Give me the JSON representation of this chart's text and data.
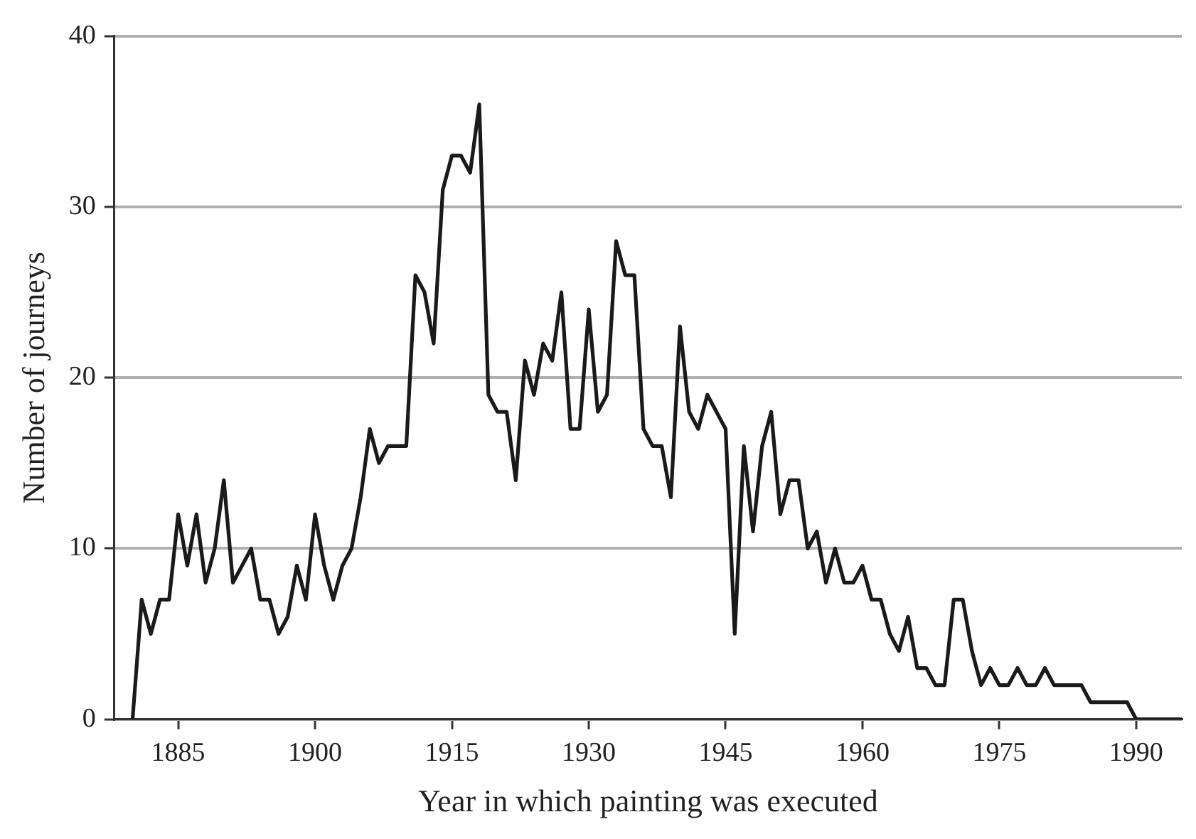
{
  "chart_data": {
    "type": "line",
    "xlabel": "Year in which painting was executed",
    "ylabel": "Number of journeys",
    "x": [
      1880,
      1881,
      1882,
      1883,
      1884,
      1885,
      1886,
      1887,
      1888,
      1889,
      1890,
      1891,
      1892,
      1893,
      1894,
      1895,
      1896,
      1897,
      1898,
      1899,
      1900,
      1901,
      1902,
      1903,
      1904,
      1905,
      1906,
      1907,
      1908,
      1909,
      1910,
      1911,
      1912,
      1913,
      1914,
      1915,
      1916,
      1917,
      1918,
      1919,
      1920,
      1921,
      1922,
      1923,
      1924,
      1925,
      1926,
      1927,
      1928,
      1929,
      1930,
      1931,
      1932,
      1933,
      1934,
      1935,
      1936,
      1937,
      1938,
      1939,
      1940,
      1941,
      1942,
      1943,
      1944,
      1945,
      1946,
      1947,
      1948,
      1949,
      1950,
      1951,
      1952,
      1953,
      1954,
      1955,
      1956,
      1957,
      1958,
      1959,
      1960,
      1961,
      1962,
      1963,
      1964,
      1965,
      1966,
      1967,
      1968,
      1969,
      1970,
      1971,
      1972,
      1973,
      1974,
      1975,
      1976,
      1977,
      1978,
      1979,
      1980,
      1981,
      1982,
      1983,
      1984,
      1985,
      1986,
      1987,
      1988,
      1989,
      1990,
      1991,
      1992,
      1993,
      1994,
      1995
    ],
    "series": [
      {
        "color": "#1a1a1a",
        "values": [
          0,
          7,
          5,
          7,
          7,
          12,
          9,
          12,
          8,
          10,
          14,
          8,
          9,
          10,
          7,
          7,
          5,
          6,
          9,
          7,
          12,
          9,
          7,
          9,
          10,
          13,
          17,
          15,
          16,
          16,
          16,
          26,
          25,
          22,
          31,
          33,
          33,
          32,
          36,
          19,
          18,
          18,
          14,
          21,
          19,
          22,
          21,
          25,
          17,
          17,
          24,
          18,
          19,
          28,
          26,
          26,
          17,
          16,
          16,
          13,
          23,
          18,
          17,
          19,
          18,
          17,
          5,
          16,
          11,
          16,
          18,
          12,
          14,
          14,
          10,
          11,
          8,
          10,
          8,
          8,
          9,
          7,
          7,
          5,
          4,
          6,
          3,
          3,
          2,
          2,
          7,
          7,
          4,
          2,
          3,
          2,
          2,
          3,
          2,
          2,
          3,
          2,
          2,
          2,
          2,
          1,
          1,
          1,
          1,
          1,
          0,
          0,
          0,
          0,
          0,
          0
        ]
      }
    ],
    "xlim": [
      1878,
      1995
    ],
    "xticks": [
      1885,
      1900,
      1915,
      1930,
      1945,
      1960,
      1975,
      1990
    ],
    "ylim": [
      0,
      40
    ],
    "yticks": [
      0,
      10,
      20,
      30,
      40
    ],
    "grid": "y",
    "marker": "none",
    "line_style": "solid"
  }
}
